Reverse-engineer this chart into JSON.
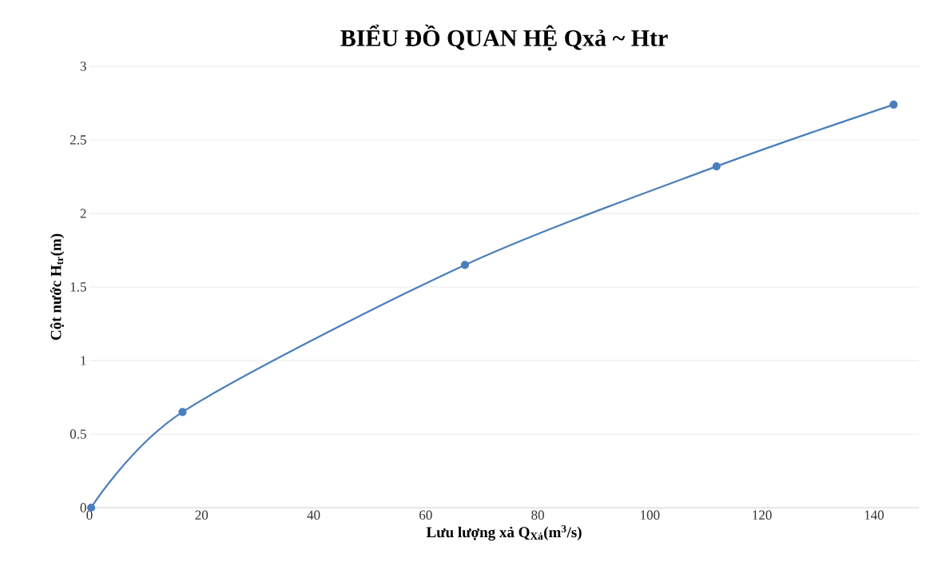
{
  "chart_data": {
    "type": "line",
    "title": "BIỂU ĐỒ QUAN HỆ Qxả ~ Htr",
    "xlabel": "Lưu lượng xả Q$_{Xả}$(m$^{3}$/s)",
    "ylabel": "Cột nước H$_{tr}$(m)",
    "x": [
      0.3,
      16.6,
      67.0,
      111.9,
      143.5
    ],
    "series": [
      {
        "color": "#4a7ebb",
        "values": [
          0,
          0.65,
          1.65,
          2.32,
          2.74
        ]
      }
    ],
    "xlim": [
      0,
      148
    ],
    "xticks": [
      0,
      20,
      40,
      60,
      80,
      100,
      120,
      140
    ],
    "ylim": [
      0,
      3
    ],
    "yticks": [
      0,
      0.5,
      1,
      1.5,
      2,
      2.5,
      3
    ],
    "grid": "y",
    "marker": "circle",
    "line_style": "solid"
  }
}
